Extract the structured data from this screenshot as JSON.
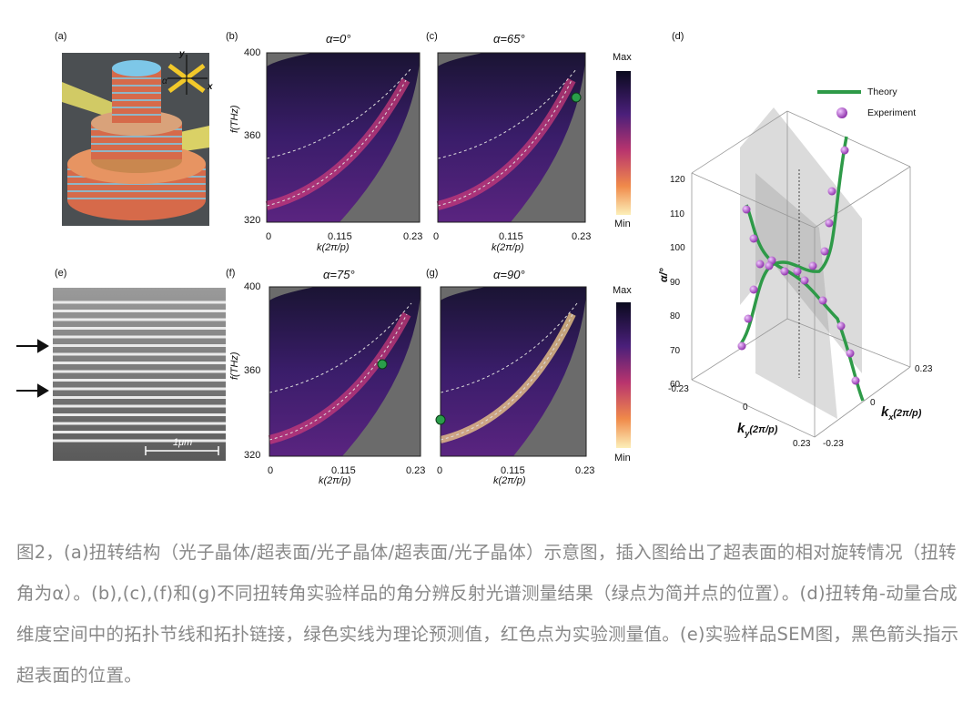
{
  "figure": {
    "panel_labels": {
      "a": "(a)",
      "b": "(b)",
      "c": "(c)",
      "d": "(d)",
      "e": "(e)",
      "f": "(f)",
      "g": "(g)"
    },
    "panel_titles": {
      "b": "α=0°",
      "c": "α=65°",
      "f": "α=75°",
      "g": "α=90°"
    },
    "spectra": {
      "y_ticks": [
        "400",
        "360",
        "320"
      ],
      "x_ticks": [
        "0",
        "0.115",
        "0.23"
      ],
      "ylabel": "f(THz)",
      "xlabel": "k(2π/p)",
      "colorbar": {
        "max_label": "Max",
        "min_label": "Min"
      }
    },
    "panel_a": {
      "axis_y": "y",
      "axis_x": "x",
      "angle": "α"
    },
    "panel_e": {
      "scale_label": "1μm"
    },
    "panel_d": {
      "legend": {
        "theory": "Theory",
        "experiment": "Experiment"
      },
      "alpha_label": "α/°",
      "alpha_ticks": [
        "120",
        "110",
        "100",
        "90",
        "80",
        "70",
        "60"
      ],
      "ky_ticks": [
        "-0.23",
        "0",
        "0.23"
      ],
      "kx_ticks": [
        "0.23",
        "0",
        "-0.23"
      ],
      "ky_label": "k",
      "ky_sub": "y",
      "ky_unit": "(2π/p)",
      "kx_label": "k",
      "kx_sub": "x",
      "kx_unit": "(2π/p)"
    }
  },
  "caption": {
    "text": "图2，(a)扭转结构（光子晶体/超表面/光子晶体/超表面/光子晶体）示意图，插入图给出了超表面的相对旋转情况（扭转角为α）。(b),(c),(f)和(g)不同扭转角实验样品的角分辨反射光谱测量结果（绿点为简并点的位置）。(d)扭转角-动量合成维度空间中的拓扑节线和拓扑链接，绿色实线为理论预测值，红色点为实验测量值。(e)实验样品SEM图，黑色箭头指示超表面的位置。"
  },
  "colors": {
    "theory_line": "#2e9a48",
    "experiment_dot": "#b25cc8",
    "degenerate_point": "#2a9d4a",
    "caption_text": "#888888"
  }
}
